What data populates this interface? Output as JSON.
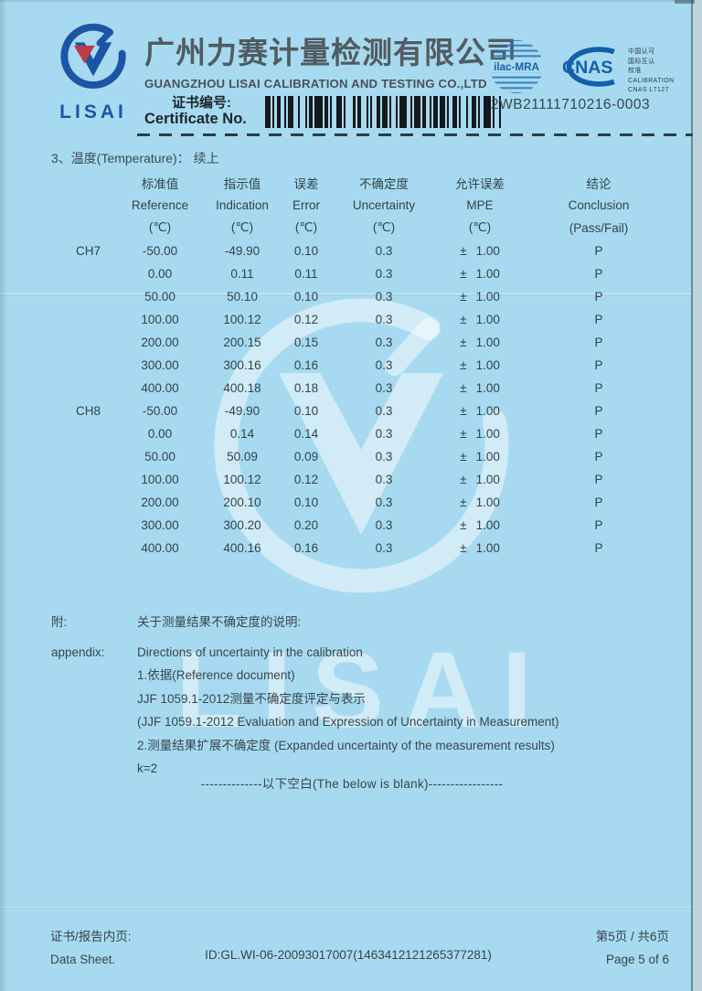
{
  "header": {
    "logo_text": "LISAI",
    "company_cn": "广州力赛计量检测有限公司",
    "company_en": "GUANGZHOU LISAI CALIBRATION AND TESTING CO.,LTD",
    "cert_no_label_cn": "证书编号:",
    "cert_no_label_en": "Certificate No.",
    "cert_no_value": "2WB21111710216-0003",
    "accreditation": {
      "ilac_label": "ilac-MRA",
      "cnas_label": "CNAS",
      "cnas_lines": [
        "中国认可",
        "国际互认",
        "校准",
        "CALIBRATION",
        "CNAS L7127"
      ]
    }
  },
  "section": {
    "title": "3、温度(Temperature)： 续上"
  },
  "table": {
    "columns": [
      {
        "cn": "标准值",
        "en": "Reference",
        "unit": "(℃)"
      },
      {
        "cn": "指示值",
        "en": "Indication",
        "unit": "(℃)"
      },
      {
        "cn": "误差",
        "en": "Error",
        "unit": "(℃)"
      },
      {
        "cn": "不确定度",
        "en": "Uncertainty",
        "unit": "(℃)"
      },
      {
        "cn": "允许误差",
        "en": "MPE",
        "unit": "(℃)"
      },
      {
        "cn": "结论",
        "en": "Conclusion",
        "unit": "(Pass/Fail)"
      }
    ],
    "mpe_sign": "±",
    "groups": [
      {
        "channel": "CH7",
        "rows": [
          [
            "-50.00",
            "-49.90",
            "0.10",
            "0.3",
            "1.00",
            "P"
          ],
          [
            "0.00",
            "0.11",
            "0.11",
            "0.3",
            "1.00",
            "P"
          ],
          [
            "50.00",
            "50.10",
            "0.10",
            "0.3",
            "1.00",
            "P"
          ],
          [
            "100.00",
            "100.12",
            "0.12",
            "0.3",
            "1.00",
            "P"
          ],
          [
            "200.00",
            "200.15",
            "0.15",
            "0.3",
            "1.00",
            "P"
          ],
          [
            "300.00",
            "300.16",
            "0.16",
            "0.3",
            "1.00",
            "P"
          ],
          [
            "400.00",
            "400.18",
            "0.18",
            "0.3",
            "1.00",
            "P"
          ]
        ]
      },
      {
        "channel": "CH8",
        "rows": [
          [
            "-50.00",
            "-49.90",
            "0.10",
            "0.3",
            "1.00",
            "P"
          ],
          [
            "0.00",
            "0.14",
            "0.14",
            "0.3",
            "1.00",
            "P"
          ],
          [
            "50.00",
            "50.09",
            "0.09",
            "0.3",
            "1.00",
            "P"
          ],
          [
            "100.00",
            "100.12",
            "0.12",
            "0.3",
            "1.00",
            "P"
          ],
          [
            "200.00",
            "200.10",
            "0.10",
            "0.3",
            "1.00",
            "P"
          ],
          [
            "300.00",
            "300.20",
            "0.20",
            "0.3",
            "1.00",
            "P"
          ],
          [
            "400.00",
            "400.16",
            "0.16",
            "0.3",
            "1.00",
            "P"
          ]
        ]
      }
    ]
  },
  "appendix": {
    "rows": [
      {
        "label": "附:",
        "text": "关于测量结果不确定度的说明:"
      },
      {
        "label": "appendix:",
        "text": "Directions of uncertainty in the calibration"
      },
      {
        "label": "",
        "text": "1.依据(Reference document)"
      },
      {
        "label": "",
        "text": "JJF 1059.1-2012测量不确定度评定与表示"
      },
      {
        "label": "",
        "text": "(JJF 1059.1-2012 Evaluation and Expression of Uncertainty in Measurement)"
      },
      {
        "label": "",
        "text": "2.测量结果扩展不确定度 (Expanded uncertainty of the measurement results)"
      },
      {
        "label": "",
        "text": "k=2"
      }
    ],
    "blank_note": "--------------以下空白(The below is blank)-----------------"
  },
  "footer": {
    "left_cn": "证书/报告内页:",
    "left_en": "Data Sheet.",
    "doc_id": "ID:GL.WI-06-20093017007(1463412121265377281)",
    "page_cn": "第5页 / 共6页",
    "page_en": "Page 5 of 6"
  },
  "colors": {
    "page_bg": "#a7daf0",
    "logo_blue": "#1c55a4",
    "logo_red": "#bf3a42",
    "cnas_blue": "#1260ab",
    "text_dark": "#35444c"
  }
}
